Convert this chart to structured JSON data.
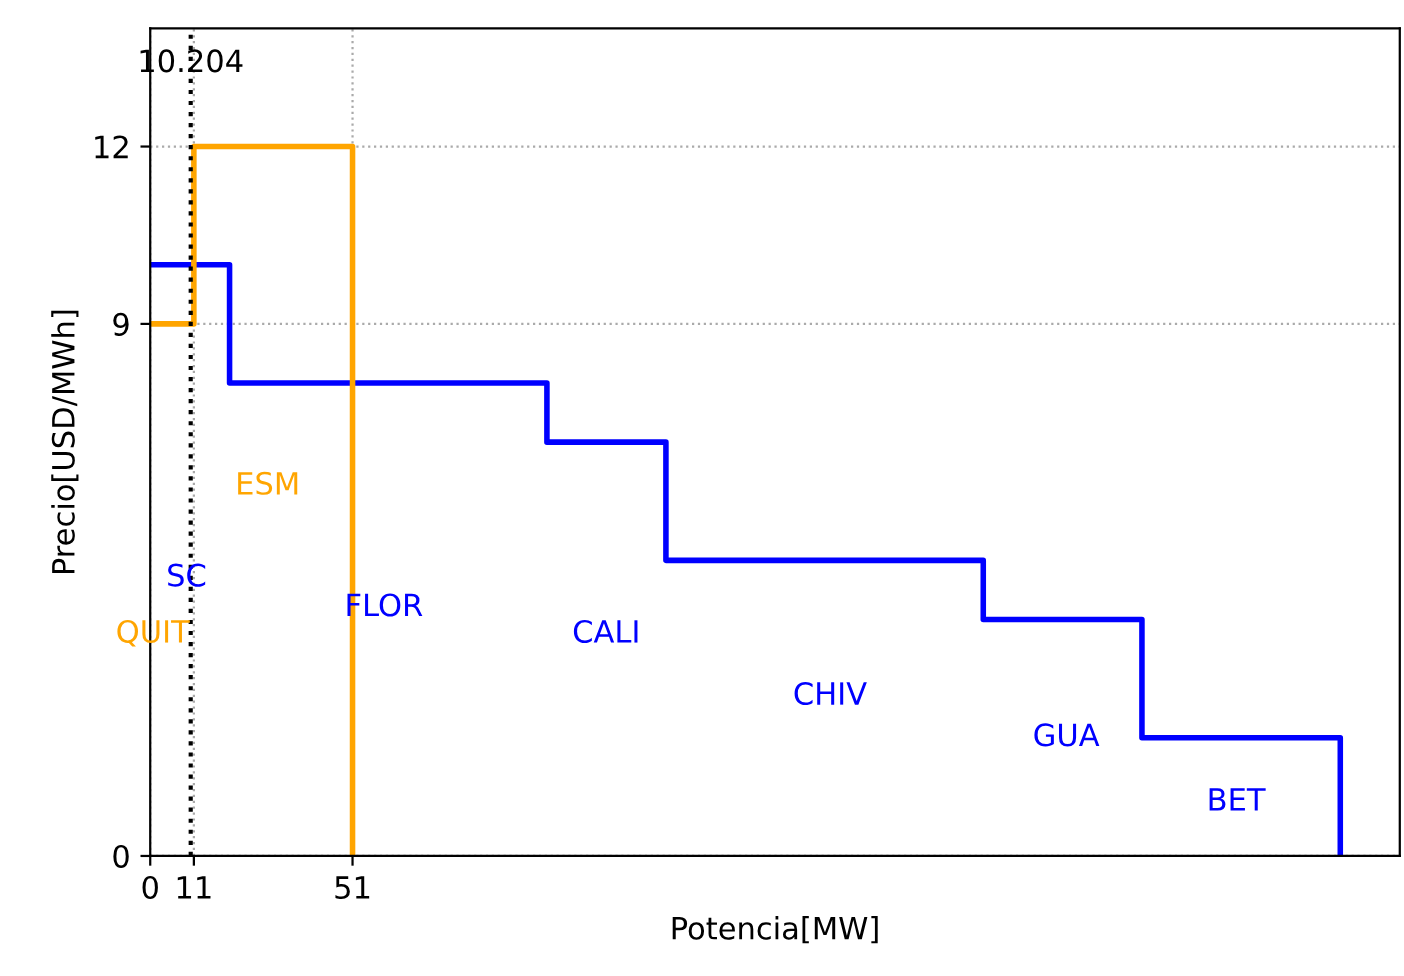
{
  "chart_data": {
    "type": "step",
    "xlabel": "Potencia[MW]",
    "ylabel": "Precio[USD/MWh]",
    "xlim": [
      0,
      315
    ],
    "ylim": [
      0,
      14
    ],
    "xticks": [
      0,
      11,
      51
    ],
    "yticks": [
      0,
      9,
      12
    ],
    "grid": true,
    "line_style": "solid",
    "marker": "none",
    "series": [
      {
        "color": "#0000ff",
        "x": [
          0,
          20,
          100,
          130,
          210,
          250,
          300,
          300
        ],
        "values": [
          10,
          8,
          7,
          5,
          4,
          2,
          2,
          0
        ]
      },
      {
        "color": "#ffa500",
        "x": [
          0,
          11,
          51,
          51
        ],
        "values": [
          9,
          12,
          12,
          0
        ]
      }
    ],
    "ref_lines": [
      {
        "axis": "x",
        "value": 10.204,
        "label": "10.204",
        "color": "#000000",
        "line_style": "dotted"
      }
    ],
    "annotations": [
      "QUIT",
      "SC",
      "ESM",
      "FLOR",
      "CALI",
      "CHIV",
      "GUA",
      "BET"
    ]
  }
}
